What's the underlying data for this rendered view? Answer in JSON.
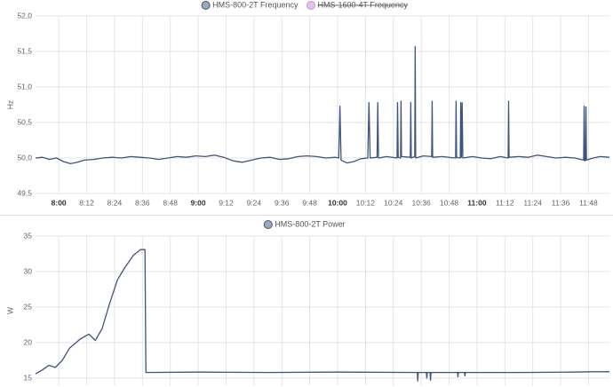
{
  "chart_data": [
    {
      "type": "line",
      "ylabel": "Hz",
      "xlim": [
        470,
        717
      ],
      "xticks": [
        {
          "value": 480,
          "label": "8:00"
        },
        {
          "value": 492,
          "label": "8:12"
        },
        {
          "value": 504,
          "label": "8:24"
        },
        {
          "value": 516,
          "label": "8:36"
        },
        {
          "value": 528,
          "label": "8:48"
        },
        {
          "value": 540,
          "label": "9:00"
        },
        {
          "value": 552,
          "label": "9:12"
        },
        {
          "value": 564,
          "label": "9:24"
        },
        {
          "value": 576,
          "label": "9:36"
        },
        {
          "value": 588,
          "label": "9:48"
        },
        {
          "value": 600,
          "label": "10:00"
        },
        {
          "value": 612,
          "label": "10:12"
        },
        {
          "value": 624,
          "label": "10:24"
        },
        {
          "value": 636,
          "label": "10:36"
        },
        {
          "value": 648,
          "label": "10:48"
        },
        {
          "value": 660,
          "label": "11:00"
        },
        {
          "value": 672,
          "label": "11:12"
        },
        {
          "value": 684,
          "label": "11:24"
        },
        {
          "value": 696,
          "label": "11:36"
        },
        {
          "value": 708,
          "label": "11:48"
        }
      ],
      "ylim": [
        49.5,
        52
      ],
      "yticks": [
        {
          "value": 49.5,
          "label": "49,5"
        },
        {
          "value": 50,
          "label": "50,0"
        },
        {
          "value": 50.5,
          "label": "50,5"
        },
        {
          "value": 51,
          "label": "51,0"
        },
        {
          "value": 51.5,
          "label": "51,5"
        },
        {
          "value": 52,
          "label": "52,0"
        }
      ],
      "grid": true,
      "series": [
        {
          "name": "HMS-800-2T Frequency",
          "color": "#3f5478",
          "x": [
            470,
            473,
            476,
            479,
            482,
            485,
            488,
            491,
            495,
            499,
            503,
            507,
            511,
            515,
            519,
            523,
            527,
            531,
            535,
            539,
            543,
            547,
            551,
            555,
            559,
            563,
            567,
            571,
            575,
            579,
            583,
            587,
            591,
            595,
            599,
            600.5,
            601,
            601.5,
            604,
            607,
            610,
            613,
            613.5,
            614,
            617,
            617.3,
            617.6,
            621,
            625.6,
            625.8,
            626.1,
            627.1,
            627.3,
            627.5,
            631.3,
            631.5,
            631.7,
            633.2,
            633.4,
            633.6,
            637,
            640.5,
            640.7,
            640.9,
            645,
            650.8,
            651,
            651.2,
            652.8,
            653,
            653.3,
            653.6,
            653.9,
            658,
            662,
            666,
            670,
            673.4,
            673.6,
            673.8,
            678,
            682,
            686,
            690,
            694,
            698,
            702,
            705.9,
            706.1,
            706.3,
            706.7,
            706.9,
            707.1,
            710,
            713,
            717
          ],
          "values": [
            50.0,
            50.01,
            49.98,
            50.0,
            49.95,
            49.92,
            49.94,
            49.97,
            49.98,
            50.0,
            50.01,
            50.0,
            50.02,
            50.01,
            50.0,
            49.98,
            50.0,
            50.02,
            50.01,
            50.03,
            50.02,
            50.04,
            50.01,
            49.96,
            49.94,
            49.97,
            50.0,
            50.01,
            49.98,
            49.99,
            50.02,
            50.03,
            50.02,
            50.0,
            50.01,
            50.0,
            50.73,
            49.97,
            49.93,
            49.95,
            49.99,
            50.0,
            50.78,
            50.0,
            50.01,
            50.78,
            50.0,
            50.02,
            50.0,
            50.78,
            50.01,
            50.0,
            50.8,
            50.02,
            50.01,
            50.78,
            50.0,
            50.02,
            51.57,
            50.0,
            50.03,
            50.02,
            50.8,
            50.01,
            50.02,
            50.0,
            50.8,
            50.01,
            50.0,
            50.78,
            50.01,
            50.78,
            50.0,
            50.02,
            50.0,
            49.99,
            50.02,
            50.0,
            50.8,
            50.01,
            50.02,
            50.01,
            50.04,
            50.02,
            50.0,
            50.01,
            50.0,
            49.97,
            50.73,
            49.96,
            49.97,
            50.72,
            49.97,
            50.0,
            50.02,
            50.01
          ]
        },
        {
          "name": "HMS-1600-4T Frequency",
          "color": "#c48fd0",
          "hidden": true
        }
      ]
    },
    {
      "type": "line",
      "ylabel": "W",
      "xlim": [
        470,
        717
      ],
      "xticks": [
        480,
        492,
        504,
        516,
        528,
        540,
        552,
        564,
        576,
        588,
        600,
        612,
        624,
        636,
        648,
        660,
        672,
        684,
        696,
        708
      ],
      "ylim": [
        14,
        35
      ],
      "yticks": [
        15,
        20,
        25,
        30,
        35
      ],
      "grid": true,
      "series": [
        {
          "name": "HMS-800-2T Power",
          "color": "#3f5478",
          "x": [
            470,
            473.1,
            475.8,
            478.5,
            481.5,
            484.6,
            489.2,
            493,
            495.7,
            498.7,
            501.4,
            505.2,
            508.3,
            512.1,
            515.2,
            517.1,
            517.5,
            540,
            570,
            600,
            634.3,
            634.5,
            634.7,
            638.2,
            638.4,
            638.6,
            639.8,
            640,
            640.2,
            651.6,
            651.8,
            652,
            654.6,
            654.8,
            655,
            680,
            700,
            710,
            717
          ],
          "values": [
            15.6,
            16.2,
            16.8,
            16.5,
            17.5,
            19.2,
            20.5,
            21.2,
            20.3,
            22,
            25,
            28.8,
            30.5,
            32.3,
            33.1,
            33.1,
            15.8,
            15.85,
            15.8,
            15.85,
            15.8,
            14.6,
            15.8,
            15.8,
            15.0,
            15.8,
            15.8,
            14.7,
            15.8,
            15.8,
            15.2,
            15.8,
            15.8,
            15.3,
            15.8,
            15.8,
            15.85,
            15.9,
            15.9
          ]
        }
      ]
    }
  ]
}
